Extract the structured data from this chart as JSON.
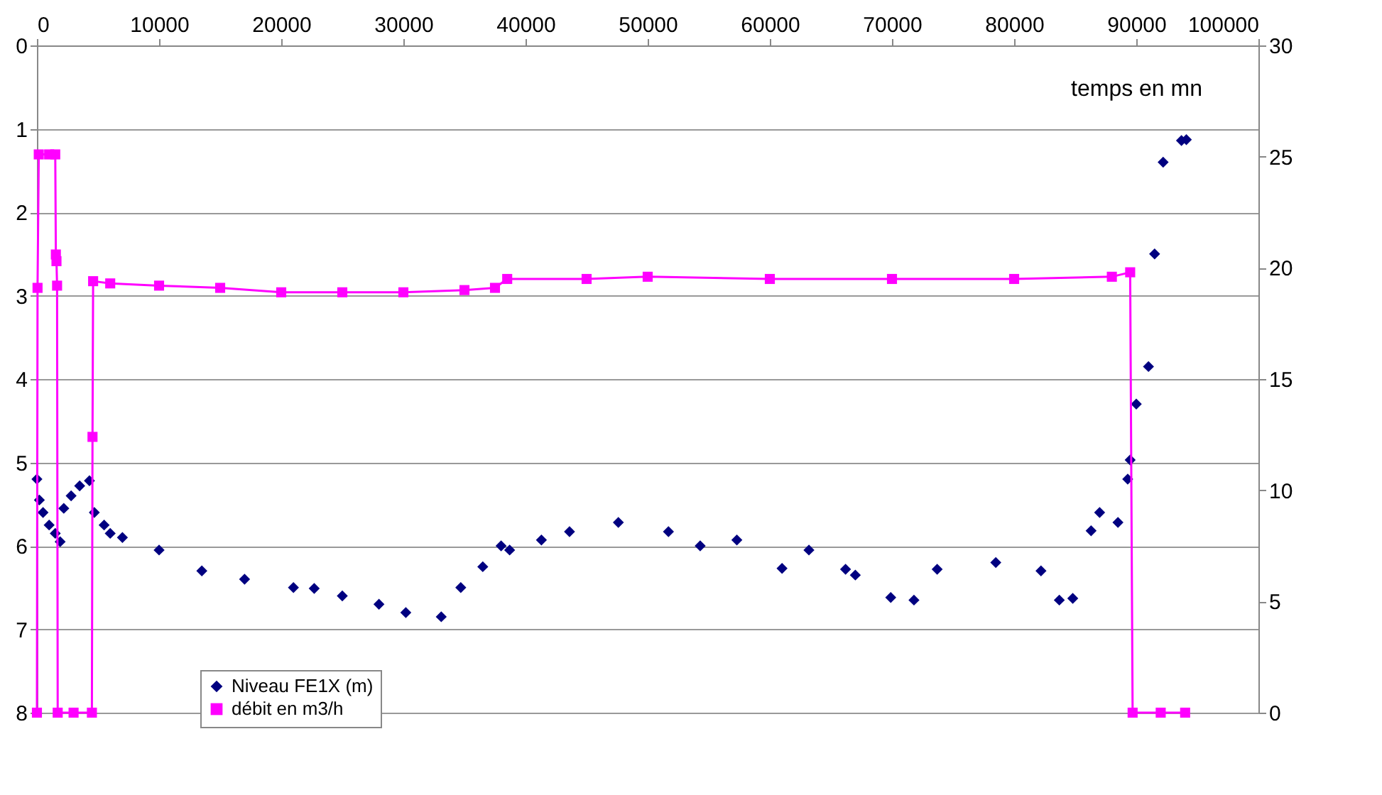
{
  "chart_data": {
    "type": "scatter",
    "xlabel": "temps en mn",
    "xlim": [
      0,
      100000
    ],
    "xticks": [
      0,
      10000,
      20000,
      30000,
      40000,
      50000,
      60000,
      70000,
      80000,
      90000,
      100000
    ],
    "ylim": [
      8,
      0
    ],
    "yticks": [
      0,
      1,
      2,
      3,
      4,
      5,
      6,
      7,
      8
    ],
    "y2lim": [
      0,
      30
    ],
    "y2ticks": [
      0,
      5,
      10,
      15,
      20,
      25,
      30
    ],
    "grid": "y",
    "legend": "bottom left",
    "series": [
      {
        "name": "Niveau FE1X (m)",
        "marker": "diamond",
        "color": "#000080",
        "x": [
          0,
          200,
          500,
          1000,
          1500,
          1900,
          2200,
          2800,
          3500,
          4300,
          4700,
          5500,
          6000,
          7000,
          10000,
          13500,
          17000,
          21000,
          22700,
          25000,
          28000,
          30200,
          33100,
          34700,
          36500,
          38000,
          38700,
          41300,
          43600,
          47600,
          51700,
          54300,
          57300,
          61000,
          63200,
          66200,
          67000,
          69900,
          71800,
          73700,
          78500,
          82200,
          83700,
          84800,
          86300,
          87000,
          88500,
          89300,
          89500,
          90000,
          91000,
          91500,
          92200,
          93700,
          94100
        ],
        "values": [
          5.2,
          5.45,
          5.6,
          5.75,
          5.85,
          5.95,
          5.55,
          5.4,
          5.28,
          5.22,
          5.6,
          5.75,
          5.85,
          5.9,
          6.05,
          6.3,
          6.4,
          6.5,
          6.51,
          6.6,
          6.7,
          6.8,
          6.85,
          6.5,
          6.25,
          6.0,
          6.05,
          5.93,
          5.83,
          5.72,
          5.83,
          6.0,
          5.93,
          6.27,
          6.05,
          6.28,
          6.35,
          6.62,
          6.65,
          6.28,
          6.2,
          6.3,
          6.65,
          6.63,
          5.82,
          5.6,
          5.72,
          5.2,
          4.97,
          4.3,
          3.85,
          2.5,
          1.4,
          1.14,
          1.13
        ]
      },
      {
        "name": "débit en m3/h",
        "type": "line",
        "marker": "square",
        "axis": "y2",
        "color": "#ff00ff",
        "x": [
          0,
          50,
          150,
          1000,
          1500,
          1550,
          1600,
          1650,
          1700,
          3000,
          4500,
          4550,
          4600,
          6000,
          10000,
          15000,
          20000,
          25000,
          30000,
          35000,
          37500,
          38500,
          45000,
          50000,
          60000,
          70000,
          80000,
          88000,
          89500,
          89700,
          92000,
          94000
        ],
        "values": [
          0,
          19.1,
          25.1,
          25.1,
          25.1,
          20.6,
          20.3,
          19.2,
          0,
          0,
          0,
          12.4,
          19.4,
          19.3,
          19.2,
          19.1,
          18.9,
          18.9,
          18.9,
          19.0,
          19.1,
          19.5,
          19.5,
          19.6,
          19.5,
          19.5,
          19.5,
          19.6,
          19.8,
          0,
          0,
          0
        ]
      }
    ]
  }
}
